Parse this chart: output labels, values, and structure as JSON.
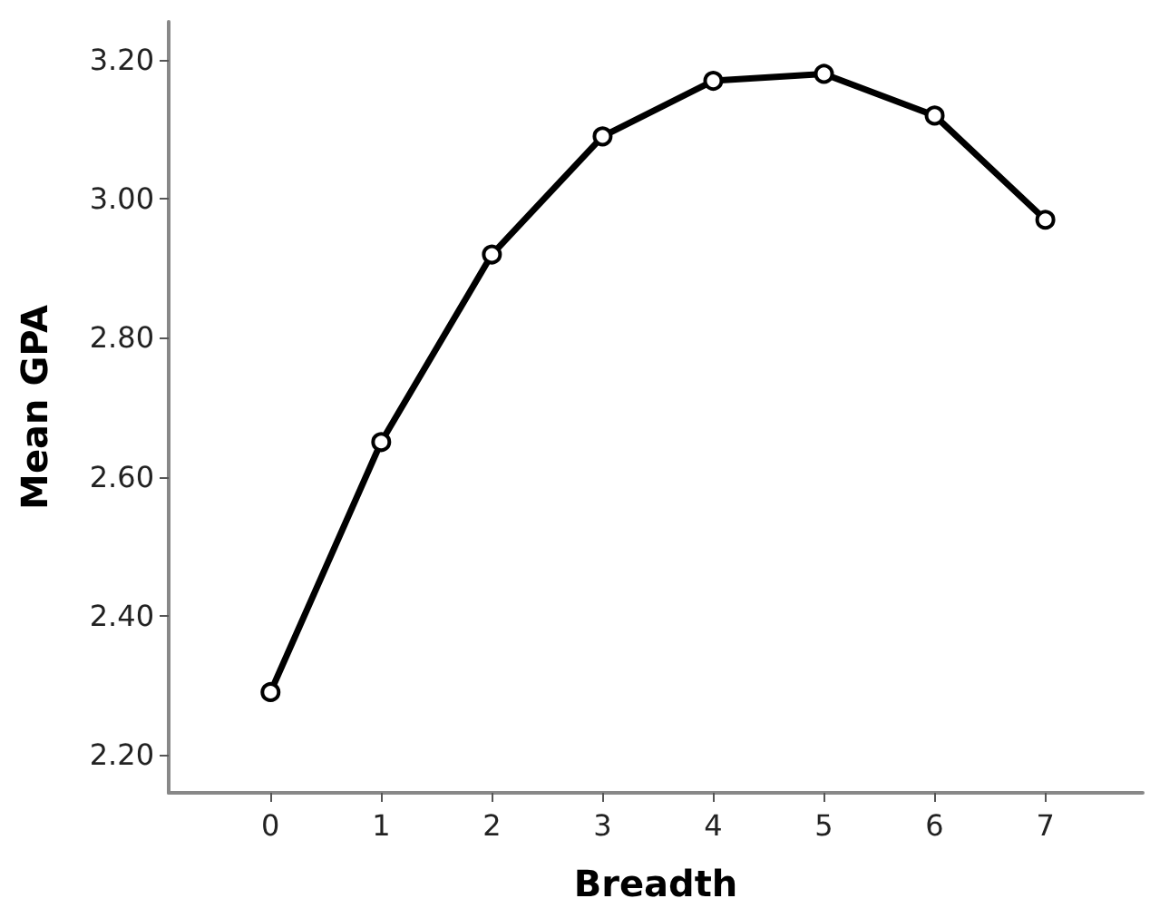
{
  "chart_data": {
    "type": "line",
    "xlabel": "Breadth",
    "ylabel": "Mean GPA",
    "x": [
      0,
      1,
      2,
      3,
      4,
      5,
      6,
      7
    ],
    "series": [
      {
        "color": "#000000",
        "values": [
          2.29,
          2.65,
          2.92,
          3.09,
          3.17,
          3.18,
          3.12,
          2.97
        ]
      }
    ],
    "xlim": [
      -0.92,
      7.88
    ],
    "xticks": [
      0,
      1,
      2,
      3,
      4,
      5,
      6,
      7
    ],
    "ylim": [
      2.145,
      3.255
    ],
    "yticks": [
      {
        "value": 2.2,
        "label": "2.20"
      },
      {
        "value": 2.4,
        "label": "2.40"
      },
      {
        "value": 2.6,
        "label": "2.60"
      },
      {
        "value": 2.8,
        "label": "2.80"
      },
      {
        "value": 3.0,
        "label": "3.00"
      },
      {
        "value": 3.2,
        "label": "3.20"
      }
    ],
    "grid": false,
    "marker": "circle",
    "line_style": "solid"
  }
}
